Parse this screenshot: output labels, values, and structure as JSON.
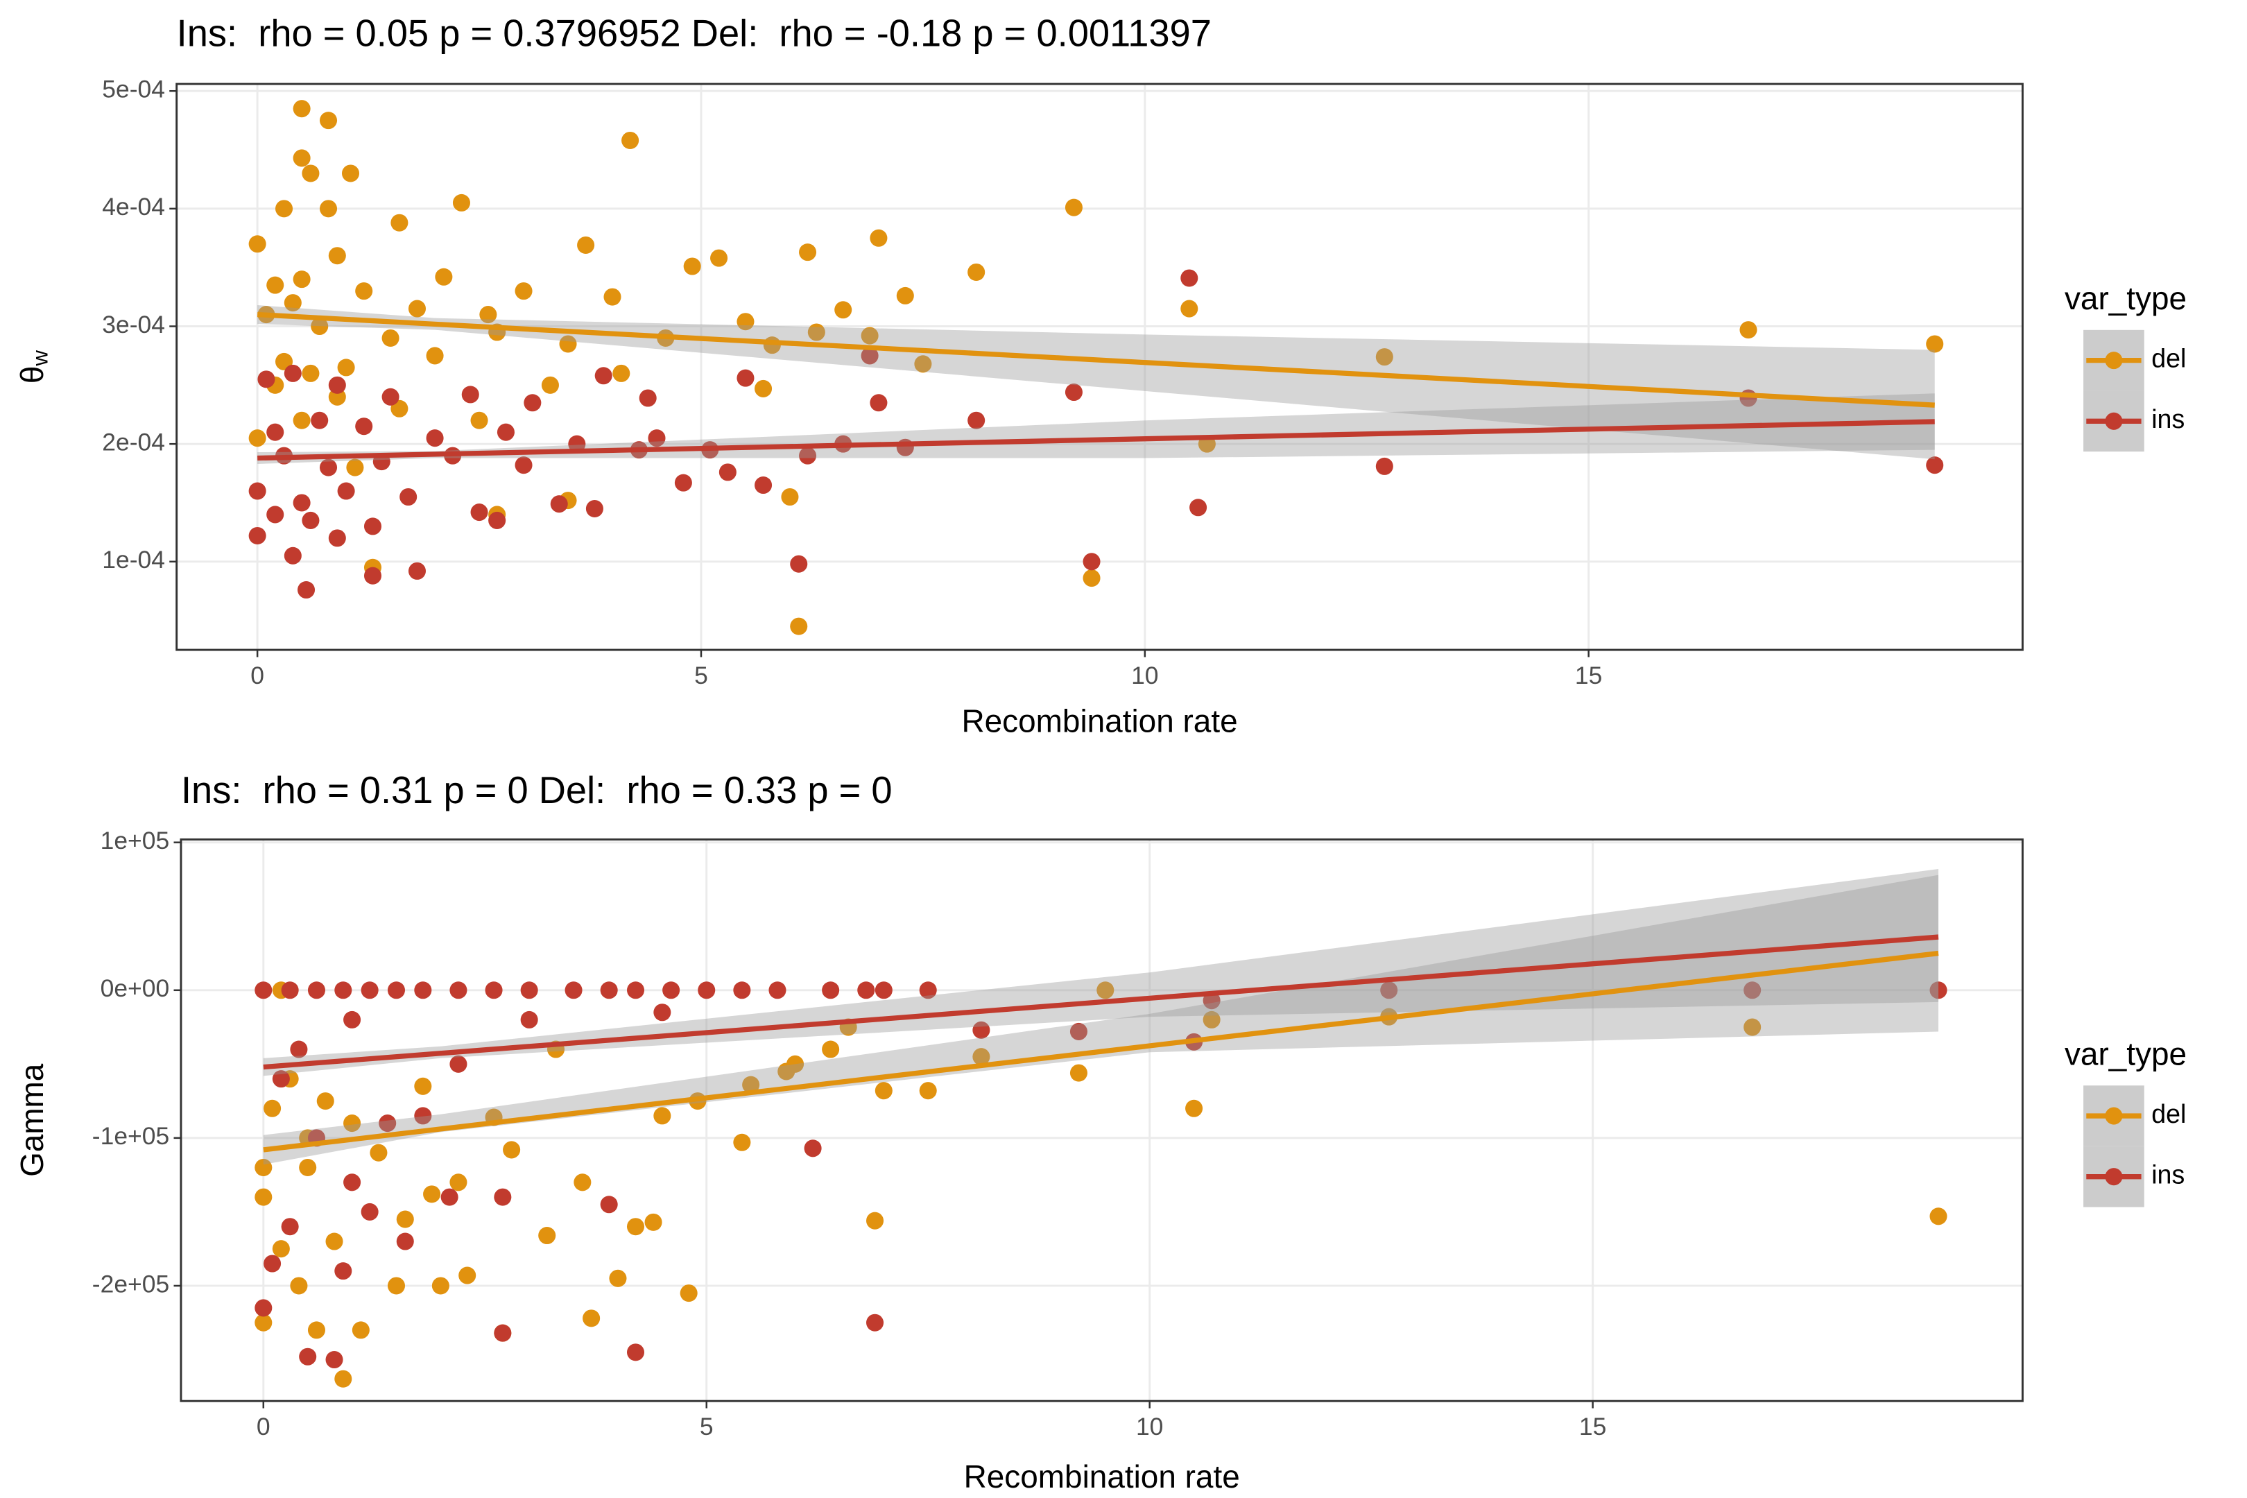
{
  "chart_data": [
    {
      "type": "scatter",
      "title": "Ins:  rho = 0.05 p = 0.3796952 Del:  rho = -0.18 p = 0.0011397",
      "x_label": "Recombination rate",
      "y_label": "θ",
      "y_label_subscript": "w",
      "xlim": [
        -0.91,
        19.89
      ],
      "ylim": [
        2.5e-05,
        0.000506
      ],
      "xticks": [
        0,
        5,
        10,
        15
      ],
      "yticks": [
        {
          "value": 0.0001,
          "label": "1e-04"
        },
        {
          "value": 0.0002,
          "label": "2e-04"
        },
        {
          "value": 0.0003,
          "label": "3e-04"
        },
        {
          "value": 0.0004,
          "label": "4e-04"
        },
        {
          "value": 0.0005,
          "label": "5e-04"
        }
      ],
      "grid": true,
      "legend": {
        "title": "var_type",
        "position": "right"
      },
      "band_color": "#999999",
      "series": [
        {
          "name": "del",
          "color": "#e1920f",
          "x": [
            0.5,
            0.8,
            4.2,
            0.5,
            0.6,
            1.05,
            9.2,
            2.3,
            0.3,
            0.8,
            1.6,
            0,
            3.7,
            7.0,
            6.2,
            0.9,
            5.2,
            4.9,
            8.1,
            0.2,
            0.5,
            1.2,
            2.1,
            3.0,
            4.0,
            7.3,
            0.4,
            1.8,
            2.6,
            10.5,
            6.6,
            5.5,
            0.1,
            0.7,
            1.5,
            2.7,
            3.5,
            4.6,
            6.3,
            6.9,
            16.8,
            18.9,
            12.7,
            7.5,
            5.8,
            0.3,
            1.0,
            2.0,
            3.3,
            5.7,
            4.1,
            0.2,
            0.9,
            1.6,
            2.5,
            0.5,
            1.1,
            2.7,
            6.0,
            3.5,
            10.7,
            9.4,
            6.1,
            1.3,
            0,
            0.6
          ],
          "y": [
            0.000485,
            0.000475,
            0.000458,
            0.000443,
            0.00043,
            0.00043,
            0.000401,
            0.000405,
            0.0004,
            0.0004,
            0.000388,
            0.00037,
            0.000369,
            0.000375,
            0.000363,
            0.00036,
            0.000358,
            0.000351,
            0.000346,
            0.000335,
            0.00034,
            0.00033,
            0.000342,
            0.00033,
            0.000325,
            0.000326,
            0.00032,
            0.000315,
            0.00031,
            0.000315,
            0.000314,
            0.000304,
            0.00031,
            0.0003,
            0.00029,
            0.000295,
            0.000285,
            0.00029,
            0.000295,
            0.000292,
            0.000297,
            0.000285,
            0.000274,
            0.000268,
            0.000284,
            0.00027,
            0.000265,
            0.000275,
            0.00025,
            0.000247,
            0.00026,
            0.00025,
            0.00024,
            0.00023,
            0.00022,
            0.00022,
            0.00018,
            0.00014,
            0.000155,
            0.000152,
            0.0002,
            8.6e-05,
            4.5e-05,
            9.5e-05,
            0.000205,
            0.00026
          ],
          "fit": {
            "x": [
              0,
              18.9
            ],
            "y": [
              0.00031,
              0.000233
            ]
          },
          "band": {
            "x": [
              0,
              2,
              10,
              18.9
            ],
            "lower": [
              0.000302,
              0.000297,
              0.000245,
              0.000187
            ],
            "upper": [
              0.000318,
              0.000307,
              0.000293,
              0.00028
            ]
          }
        },
        {
          "name": "ins",
          "color": "#c13b2e",
          "x": [
            10.5,
            0.1,
            0.4,
            0.9,
            1.5,
            2.4,
            3.1,
            3.9,
            4.4,
            5.5,
            6.9,
            9.2,
            16.8,
            0.2,
            0.7,
            1.2,
            2.0,
            2.8,
            3.6,
            4.5,
            5.1,
            6.6,
            8.1,
            7.0,
            0.3,
            0.8,
            1.4,
            2.2,
            3.0,
            4.3,
            5.3,
            6.2,
            7.3,
            12.7,
            18.9,
            0,
            0.5,
            1.0,
            1.7,
            2.5,
            3.4,
            4.8,
            5.7,
            10.6,
            0.2,
            0.6,
            1.3,
            2.7,
            0,
            0.4,
            0.9,
            6.1,
            9.4,
            1.3,
            1.8,
            0.55,
            3.8
          ],
          "y": [
            0.000341,
            0.000255,
            0.00026,
            0.00025,
            0.00024,
            0.000242,
            0.000235,
            0.000258,
            0.000239,
            0.000256,
            0.000275,
            0.000244,
            0.000239,
            0.00021,
            0.00022,
            0.000215,
            0.000205,
            0.00021,
            0.0002,
            0.000205,
            0.000195,
            0.0002,
            0.00022,
            0.000235,
            0.00019,
            0.00018,
            0.000185,
            0.00019,
            0.000182,
            0.000195,
            0.000176,
            0.00019,
            0.000197,
            0.000181,
            0.000182,
            0.00016,
            0.00015,
            0.00016,
            0.000155,
            0.000142,
            0.000149,
            0.000167,
            0.000165,
            0.000146,
            0.00014,
            0.000135,
            0.00013,
            0.000135,
            0.000122,
            0.000105,
            0.00012,
            9.8e-05,
            0.0001,
            8.8e-05,
            9.2e-05,
            7.6e-05,
            0.000145
          ],
          "fit": {
            "x": [
              0,
              18.9
            ],
            "y": [
              0.000188,
              0.000219
            ]
          },
          "band": {
            "x": [
              0,
              2,
              10,
              18.9
            ],
            "lower": [
              0.000183,
              0.000188,
              0.000188,
              0.000195
            ],
            "upper": [
              0.000193,
              0.000194,
              0.00022,
              0.000243
            ]
          }
        }
      ]
    },
    {
      "type": "scatter",
      "title": "Ins:  rho = 0.31 p = 0 Del:  rho = 0.33 p = 0",
      "x_label": "Recombination rate",
      "y_label": "Gamma",
      "xlim": [
        -0.93,
        19.85
      ],
      "ylim": [
        -278000,
        102000
      ],
      "xticks": [
        0,
        5,
        10,
        15
      ],
      "yticks": [
        {
          "value": -200000,
          "label": "-2e+05"
        },
        {
          "value": -100000,
          "label": "-1e+05"
        },
        {
          "value": 0,
          "label": "0e+00"
        },
        {
          "value": 100000,
          "label": "1e+05"
        }
      ],
      "grid": true,
      "legend": {
        "title": "var_type",
        "position": "right"
      },
      "band_color": "#999999",
      "series": [
        {
          "name": "del",
          "color": "#e1920f",
          "x": [
            9.5,
            12.7,
            16.8,
            18.9,
            10.7,
            10.5,
            9.2,
            8.1,
            7.0,
            7.5,
            6.9,
            6.4,
            5.5,
            5.9,
            5.4,
            4.9,
            4.5,
            4.8,
            4.4,
            4.2,
            4.0,
            3.7,
            3.6,
            3.2,
            2.7,
            2.8,
            2.3,
            2.2,
            1.9,
            1.6,
            1.3,
            1.0,
            0.8,
            0.9,
            0.6,
            0.4,
            0.2,
            0,
            0,
            0.1,
            0.3,
            0.5,
            1.1,
            1.5,
            2.0,
            0.7,
            1.8,
            2.6,
            3.3,
            6.0,
            6.6,
            0.2,
            0.5,
            0
          ],
          "y": [
            0,
            -18000,
            -25000,
            -153000,
            -20000,
            -80000,
            -56000,
            -45000,
            -68000,
            -68000,
            -156000,
            -40000,
            -64000,
            -55000,
            -103000,
            -75000,
            -85000,
            -205000,
            -157000,
            -160000,
            -195000,
            -222000,
            -130000,
            -166000,
            -232000,
            -108000,
            -193000,
            -130000,
            -138000,
            -155000,
            -110000,
            -90000,
            -170000,
            -263000,
            -230000,
            -200000,
            -175000,
            -225000,
            -120000,
            -80000,
            -60000,
            -120000,
            -230000,
            -200000,
            -200000,
            -75000,
            -65000,
            -86000,
            -40000,
            -50000,
            -25000,
            0,
            -100000,
            -140000
          ],
          "fit": {
            "x": [
              0,
              18.9
            ],
            "y": [
              -108000,
              25000
            ]
          },
          "band": {
            "x": [
              0,
              2,
              10,
              18.9
            ],
            "lower": [
              -118000,
              -96000,
              -42000,
              -28000
            ],
            "upper": [
              -98000,
              -84000,
              -16000,
              78000
            ]
          }
        },
        {
          "name": "ins",
          "color": "#c13b2e",
          "x": [
            0,
            0.3,
            0.6,
            0.9,
            1.2,
            1.5,
            1.8,
            2.2,
            2.6,
            3.0,
            3.5,
            3.9,
            4.2,
            4.6,
            5.0,
            5.4,
            5.8,
            6.4,
            6.8,
            7.0,
            7.5,
            18.9,
            16.8,
            12.7,
            10.7,
            10.5,
            9.2,
            8.1,
            6.2,
            6.9,
            4.2,
            3.9,
            2.7,
            2.7,
            2.1,
            1.6,
            1.2,
            1.0,
            0.8,
            0.5,
            0.3,
            0.1,
            0,
            0.2,
            0.6,
            1.4,
            2.2,
            3.0,
            4.5,
            0.4,
            1.0,
            1.8,
            0.9
          ],
          "y": [
            0,
            0,
            0,
            0,
            0,
            0,
            0,
            0,
            0,
            0,
            0,
            0,
            0,
            0,
            0,
            0,
            0,
            0,
            0,
            0,
            0,
            0,
            0,
            0,
            -7000,
            -35000,
            -28000,
            -27000,
            -107000,
            -225000,
            -245000,
            -145000,
            -140000,
            -232000,
            -140000,
            -170000,
            -150000,
            -130000,
            -250000,
            -248000,
            -160000,
            -185000,
            -215000,
            -60000,
            -100000,
            -90000,
            -50000,
            -20000,
            -15000,
            -40000,
            -20000,
            -85000,
            -190000
          ],
          "fit": {
            "x": [
              0,
              18.9
            ],
            "y": [
              -52000,
              36000
            ]
          },
          "band": {
            "x": [
              0,
              2,
              10,
              18.9
            ],
            "lower": [
              -58000,
              -46000,
              -18000,
              -8000
            ],
            "upper": [
              -46000,
              -38000,
              12000,
              82000
            ]
          }
        }
      ]
    }
  ]
}
